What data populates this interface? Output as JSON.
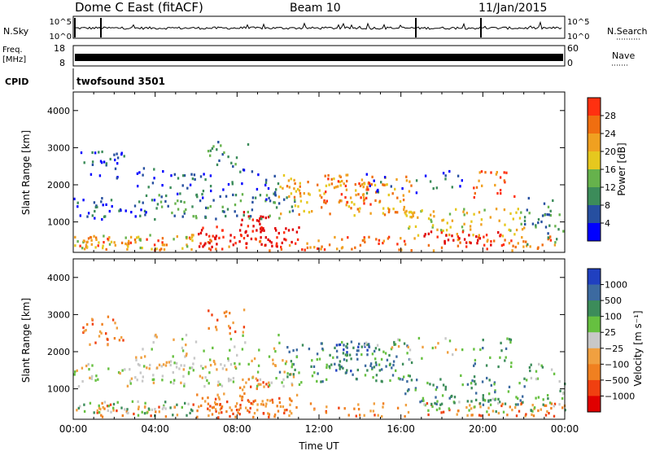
{
  "header": {
    "station": "Dome C East (fitACF)",
    "beam": "Beam 10",
    "date": "11/Jan/2015"
  },
  "noise_panel": {
    "left_label": "N.Sky",
    "tick_top": "10^5",
    "tick_bottom": "10^0",
    "right_label": "N.Search",
    "right_tick_top": "10^5",
    "right_tick_bottom": "10^0"
  },
  "freq_panel": {
    "left_label_1": "Freq.",
    "left_label_2": "[MHz]",
    "tick_top": "18",
    "tick_bottom": "8",
    "right_label": "Nave",
    "right_tick_top": "60",
    "right_tick_bottom": "0"
  },
  "cpid_panel": {
    "label": "CPID",
    "value": "twofsound 3501"
  },
  "chart_data": [
    {
      "type": "heatmap",
      "name": "power",
      "ylabel": "Slant Range [km]",
      "ylim": [
        180,
        4500
      ],
      "yticks": [
        "1000",
        "2000",
        "3000",
        "4000"
      ],
      "xlim": [
        0,
        24
      ],
      "colorbar_label": "Power [dB]",
      "colorbar_ticks": [
        "4",
        "8",
        "12",
        "16",
        "20",
        "24",
        "28"
      ],
      "colorbar_range": [
        0,
        32
      ],
      "colors": [
        "#0000ff",
        "#264fa0",
        "#3c8c5a",
        "#66b24c",
        "#e6c81e",
        "#f0a020",
        "#f06e10",
        "#ff3010",
        "#e00000"
      ]
    },
    {
      "type": "heatmap",
      "name": "velocity",
      "ylabel": "Slant Range [km]",
      "ylim": [
        180,
        4500
      ],
      "yticks": [
        "1000",
        "2000",
        "3000",
        "4000"
      ],
      "xlim": [
        0,
        24
      ],
      "xticks": [
        "00:00",
        "04:00",
        "08:00",
        "12:00",
        "16:00",
        "20:00",
        "00:00"
      ],
      "xlabel": "Time UT",
      "colorbar_label": "Velocity [m s⁻¹]",
      "colorbar_ticks": [
        "1000",
        "500",
        "100",
        "25",
        "−25",
        "−100",
        "−500",
        "−1000"
      ],
      "colors": [
        "#2040c0",
        "#3c6aa0",
        "#3c8c5a",
        "#66c040",
        "#c8c8c8",
        "#f0a040",
        "#f08020",
        "#f04010",
        "#e00000"
      ]
    }
  ]
}
